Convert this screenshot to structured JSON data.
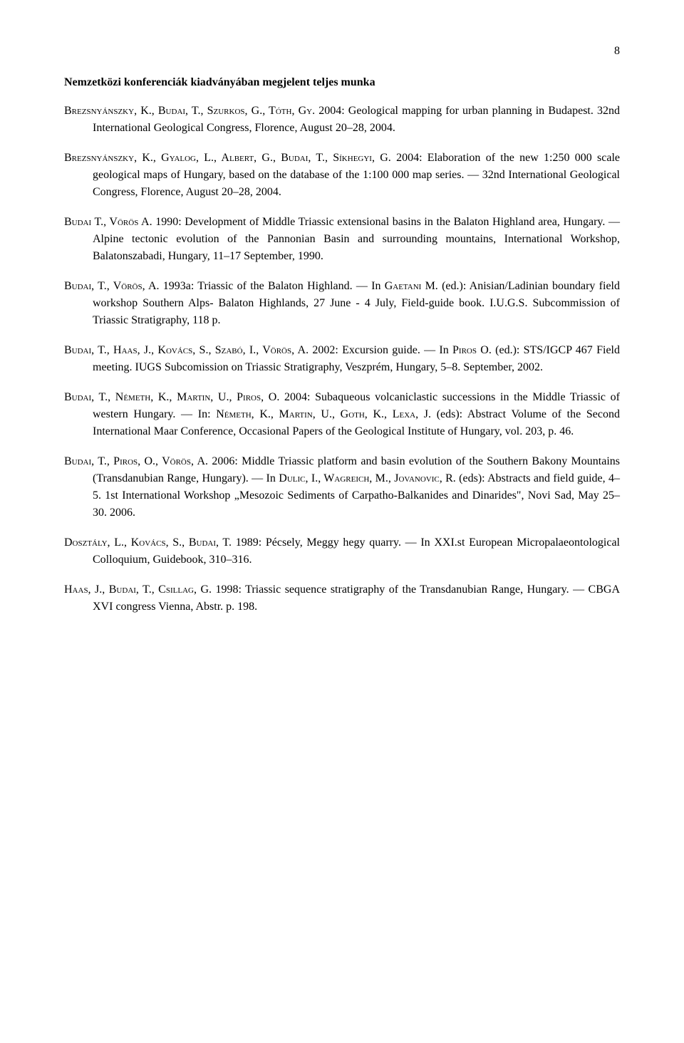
{
  "page_number": "8",
  "section_heading": "Nemzetközi konferenciák kiadványában megjelent teljes munka",
  "entries": [
    {
      "a1": "Brezsnyánszky, K., Budai, T., Szurkos, G., Tóth, Gy",
      "t1": ". 2004: Geological mapping for urban planning in Budapest. 32nd International Geological Congress, Florence, August 20–28, 2004."
    },
    {
      "a1": "Brezsnyánszky, K., Gyalog, L., Albert, G., Budai, T., Síkhegyi, G.",
      "t1": " 2004: Elaboration of the new 1:250 000 scale geological maps of Hungary, based on the database of the 1:100 000 map series. — 32nd International Geological Congress, Florence, August 20–28, 2004."
    },
    {
      "a1": "Budai T., Vörös A.",
      "t1": " 1990: Development of Middle Triassic extensional basins in the Balaton Highland area, Hungary. — Alpine tectonic evolution of the Pannonian Basin and surrounding mountains, International Workshop, Balatonszabadi, Hungary, 11–17 September, 1990."
    },
    {
      "a1": "Budai, T., Vörös, A.",
      "t1": " 1993a: Triassic of the Balaton Highland. — In ",
      "a2": "Gaetani M.",
      "t2": " (ed.): Anisian/Ladinian boundary field workshop Southern Alps- Balaton Highlands, 27 June - 4 July, Field-guide book. I.U.G.S. Subcommission of Triassic Stratigraphy, 118 p."
    },
    {
      "a1": "Budai, T., Haas, J., Kovács, S., Szabó, I., Vörös, A.",
      "t1": " 2002: Excursion guide. — In ",
      "a2": "Piros O.",
      "t2": " (ed.): STS/IGCP 467 Field meeting. IUGS Subcomission on Triassic Stratigraphy, Veszprém, Hungary, 5–8. September, 2002."
    },
    {
      "a1": "Budai, T., Németh, K., Martin, U., Piros, O.",
      "t1": " 2004: Subaqueous volcaniclastic successions in the Middle Triassic of western Hungary. — In: ",
      "a2": "Németh, K., Martin, U., Goth, K., Lexa, J.",
      "t2": " (eds): Abstract Volume of the Second International Maar Conference, Occasional Papers of the Geological Institute of Hungary, vol. 203, p. 46."
    },
    {
      "a1": "Budai, T., Piros, O., Vörös, A.",
      "t1": " 2006: Middle Triassic platform and basin evolution of the Southern Bakony Mountains (Transdanubian Range, Hungary). — In ",
      "a2": "Dulic, I., Wagreich, M., Jovanovic, R.",
      "t2": " (eds): Abstracts and field guide, 4–5. 1st International Workshop „Mesozoic Sediments of Carpatho-Balkanides and Dinarides\", Novi Sad, May 25–30. 2006."
    },
    {
      "a1": "Dosztály, L., Kovács, S., Budai, T.",
      "t1": " 1989: Pécsely, Meggy hegy quarry. — In XXI.st European Micropalaeontological Colloquium, Guidebook, 310–316."
    },
    {
      "a1": "Haas, J., Budai, T., Csillag, G.",
      "t1": " 1998: Triassic sequence stratigraphy of the Transdanubian Range, Hungary. — CBGA XVI congress Vienna, Abstr. p. 198."
    }
  ]
}
